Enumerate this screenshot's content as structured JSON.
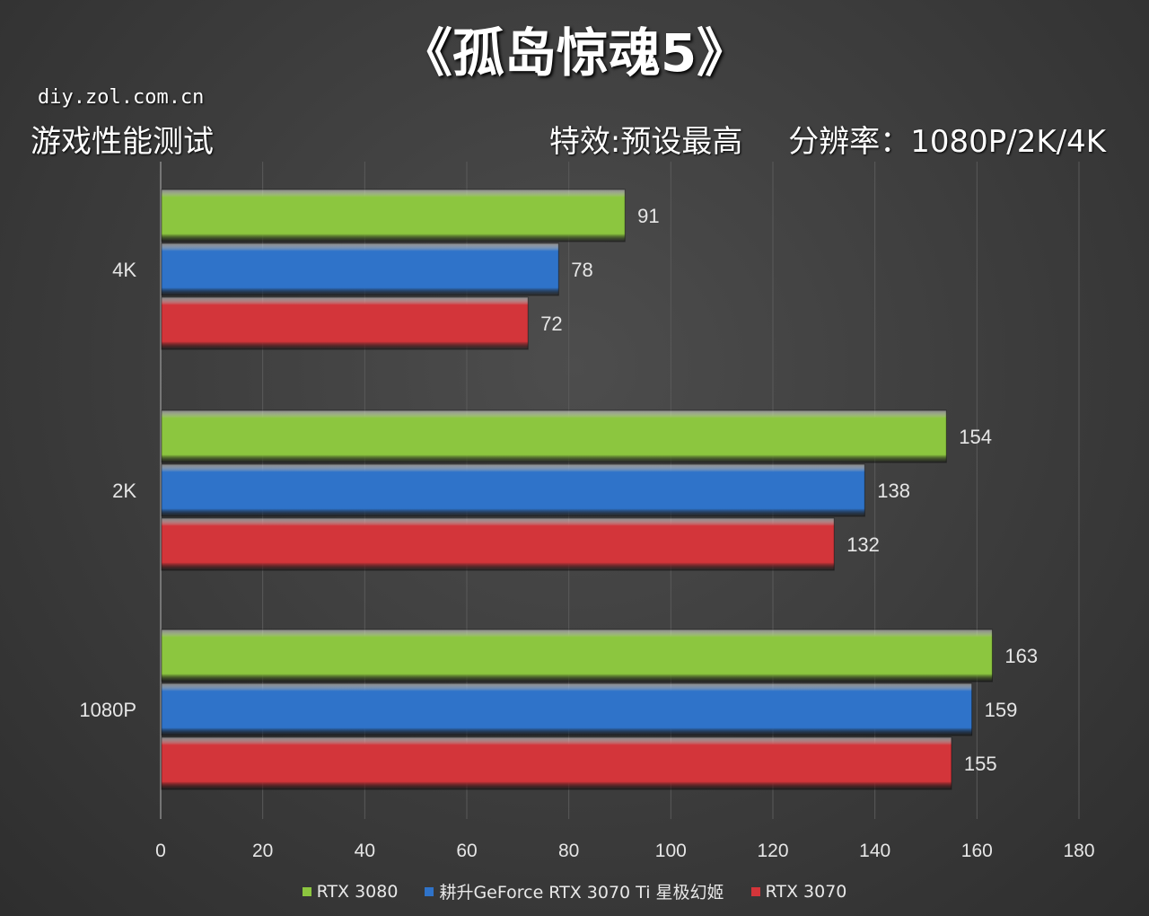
{
  "chart_data": {
    "type": "bar",
    "orientation": "horizontal",
    "title": "《孤岛惊魂5》",
    "source": "diy.zol.com.cn",
    "subtitle": "游戏性能测试",
    "settings": [
      "特效:预设最高",
      "分辨率：1080P/2K/4K"
    ],
    "categories": [
      "4K",
      "2K",
      "1080P"
    ],
    "series": [
      {
        "name": "RTX 3080",
        "color": "#8cc63f",
        "values": [
          91,
          154,
          163
        ]
      },
      {
        "name": "耕升GeForce RTX 3070 Ti 星极幻姬",
        "color": "#2f73c9",
        "values": [
          78,
          138,
          159
        ]
      },
      {
        "name": "RTX 3070",
        "color": "#d3353a",
        "values": [
          72,
          132,
          155
        ]
      }
    ],
    "xlim": [
      0,
      180
    ],
    "xticks": [
      0,
      20,
      40,
      60,
      80,
      100,
      120,
      140,
      160,
      180
    ],
    "grid": true,
    "legend_position": "bottom"
  }
}
